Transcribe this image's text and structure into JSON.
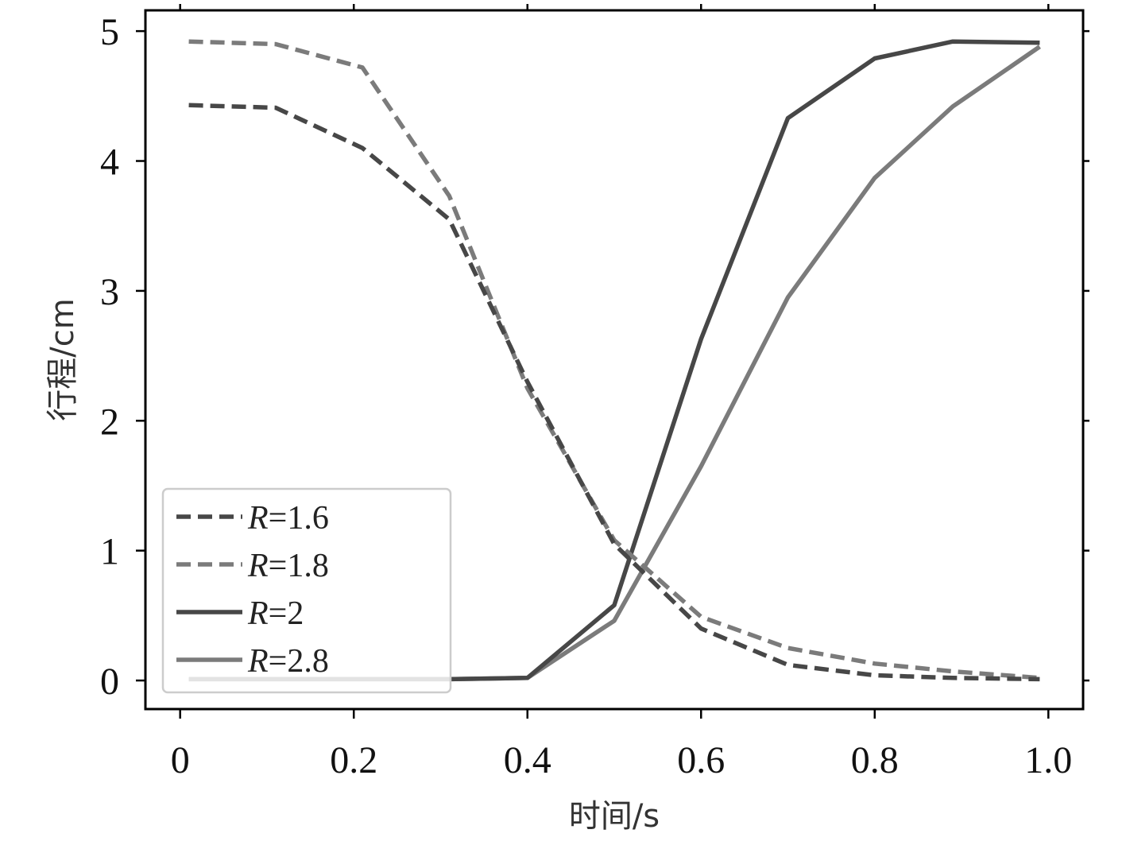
{
  "chart_data": {
    "type": "line",
    "title": "",
    "xlabel": "时间/s",
    "ylabel": "行程/cm",
    "xlim": [
      -0.04,
      1.04
    ],
    "ylim": [
      -0.22,
      5.16
    ],
    "x_ticks": [
      {
        "value": 0,
        "label": "0"
      },
      {
        "value": 0.2,
        "label": "0.2"
      },
      {
        "value": 0.4,
        "label": "0.4"
      },
      {
        "value": 0.6,
        "label": "0.6"
      },
      {
        "value": 0.8,
        "label": "0.8"
      },
      {
        "value": 1.0,
        "label": "1.0"
      }
    ],
    "y_ticks": [
      {
        "value": 0,
        "label": "0"
      },
      {
        "value": 1,
        "label": "1"
      },
      {
        "value": 2,
        "label": "2"
      },
      {
        "value": 3,
        "label": "3"
      },
      {
        "value": 4,
        "label": "4"
      },
      {
        "value": 5,
        "label": "5"
      }
    ],
    "grid": false,
    "legend_position": "lower-left",
    "x": [
      0.01,
      0.11,
      0.21,
      0.31,
      0.4,
      0.5,
      0.6,
      0.7,
      0.8,
      0.89,
      0.99
    ],
    "series": [
      {
        "name": "R=1.6",
        "name_var": "R",
        "name_rest": "=1.6",
        "style": "dashed",
        "color": "#474747",
        "values": [
          4.43,
          4.41,
          4.1,
          3.55,
          2.3,
          1.05,
          0.4,
          0.12,
          0.04,
          0.02,
          0.01
        ]
      },
      {
        "name": "R=1.8",
        "name_var": "R",
        "name_rest": "=1.8",
        "style": "dashed",
        "color": "#7b7b7b",
        "values": [
          4.92,
          4.9,
          4.72,
          3.73,
          2.25,
          1.08,
          0.49,
          0.25,
          0.13,
          0.07,
          0.02
        ]
      },
      {
        "name": "R=2",
        "name_var": "R",
        "name_rest": "=2",
        "style": "solid",
        "color": "#474747",
        "values": [
          0.01,
          0.01,
          0.01,
          0.01,
          0.02,
          0.58,
          2.63,
          4.33,
          4.79,
          4.92,
          4.91
        ]
      },
      {
        "name": "R=2.8",
        "name_var": "R",
        "name_rest": "=2.8",
        "style": "solid",
        "color": "#7b7b7b",
        "values": [
          0.01,
          0.01,
          0.01,
          0.01,
          0.02,
          0.46,
          1.65,
          2.95,
          3.87,
          4.42,
          4.88
        ]
      }
    ]
  }
}
